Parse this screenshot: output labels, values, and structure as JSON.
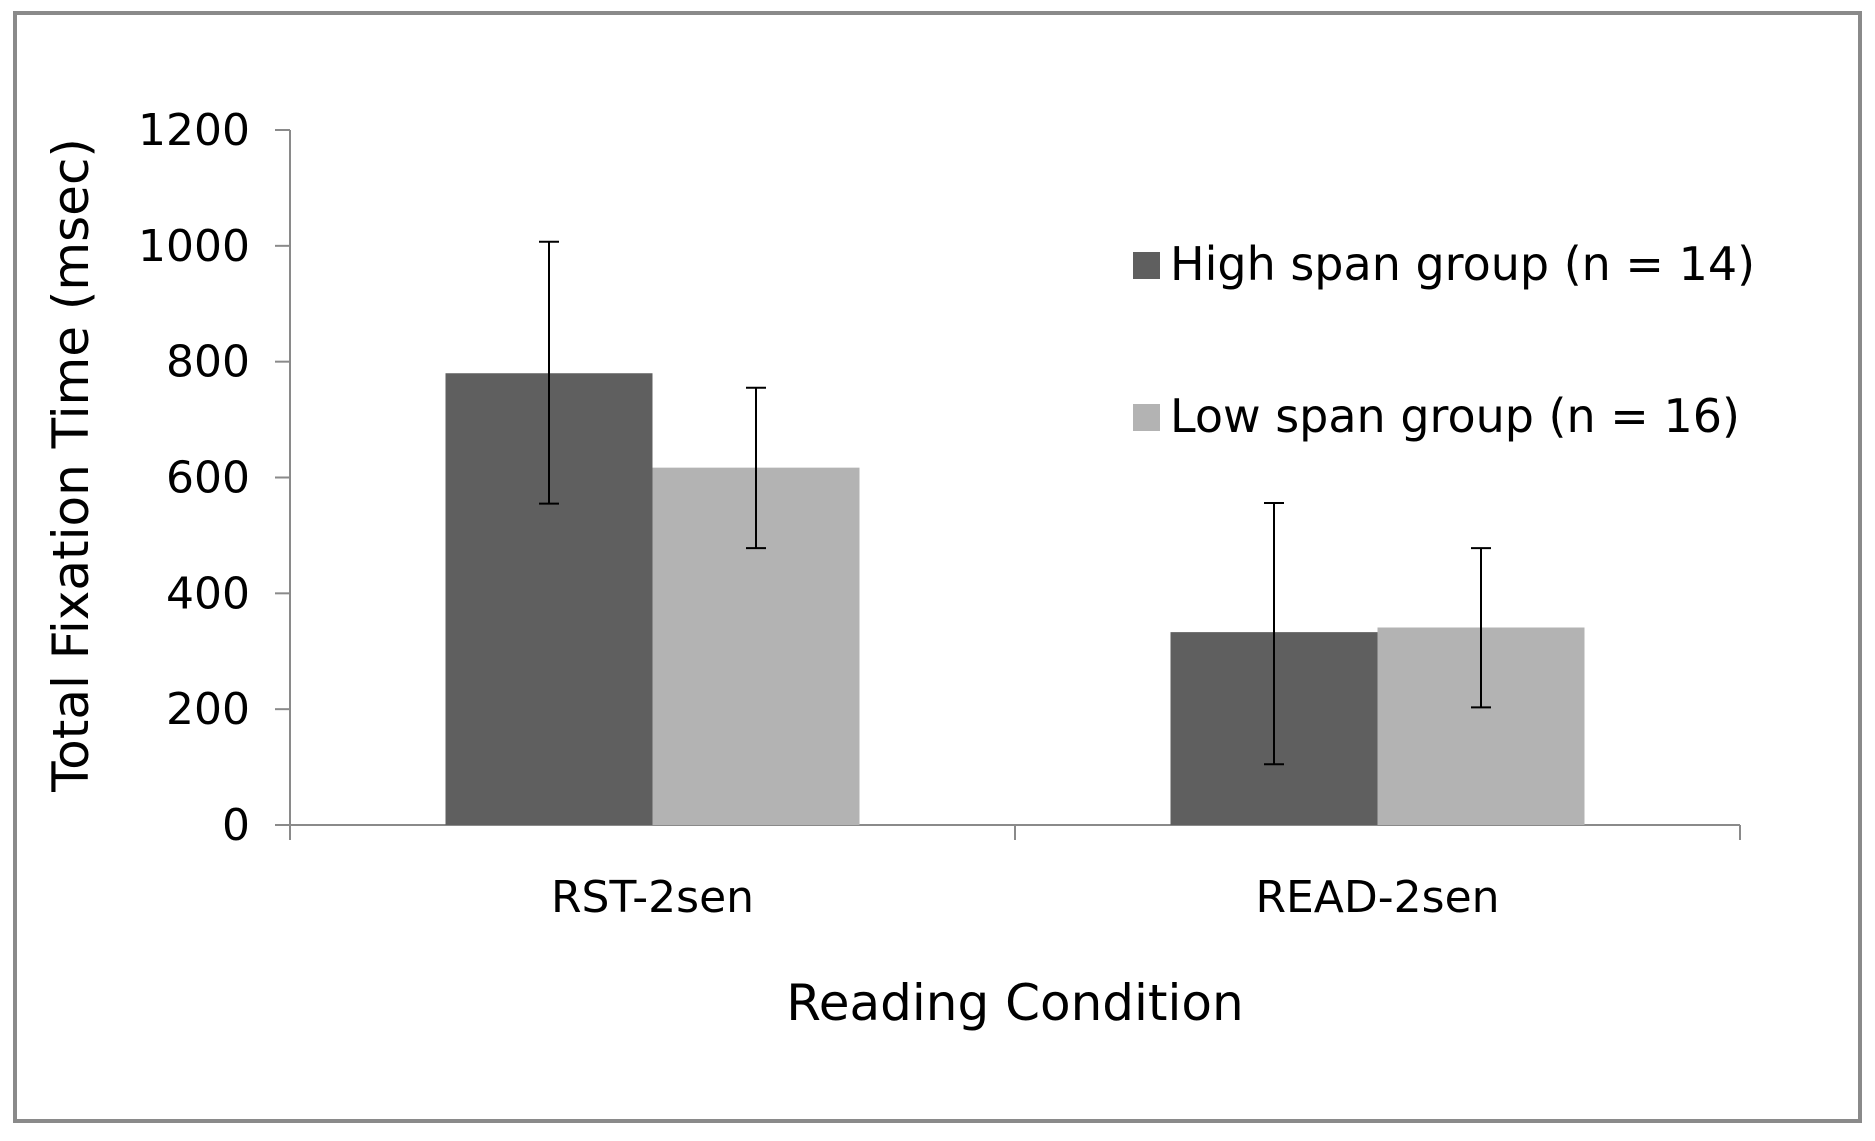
{
  "chart_data": {
    "type": "bar",
    "title": "",
    "xlabel": "Reading Condition",
    "ylabel": "Total Fixation Time (msec)",
    "ylim": [
      0,
      1200
    ],
    "yticks": [
      0,
      200,
      400,
      600,
      800,
      1000,
      1200
    ],
    "categories": [
      "RST-2sen",
      "READ-2sen"
    ],
    "series": [
      {
        "name": "High span group (n = 14)",
        "color": "#5f5f5f",
        "values": [
          780,
          333
        ],
        "error_low": [
          555,
          105
        ],
        "error_high": [
          1007,
          556
        ]
      },
      {
        "name": "Low span group (n = 16)",
        "color": "#b3b3b3",
        "values": [
          617,
          341
        ],
        "error_low": [
          478,
          203
        ],
        "error_high": [
          755,
          478
        ]
      }
    ],
    "legend_position": "top-right",
    "grid": false
  }
}
